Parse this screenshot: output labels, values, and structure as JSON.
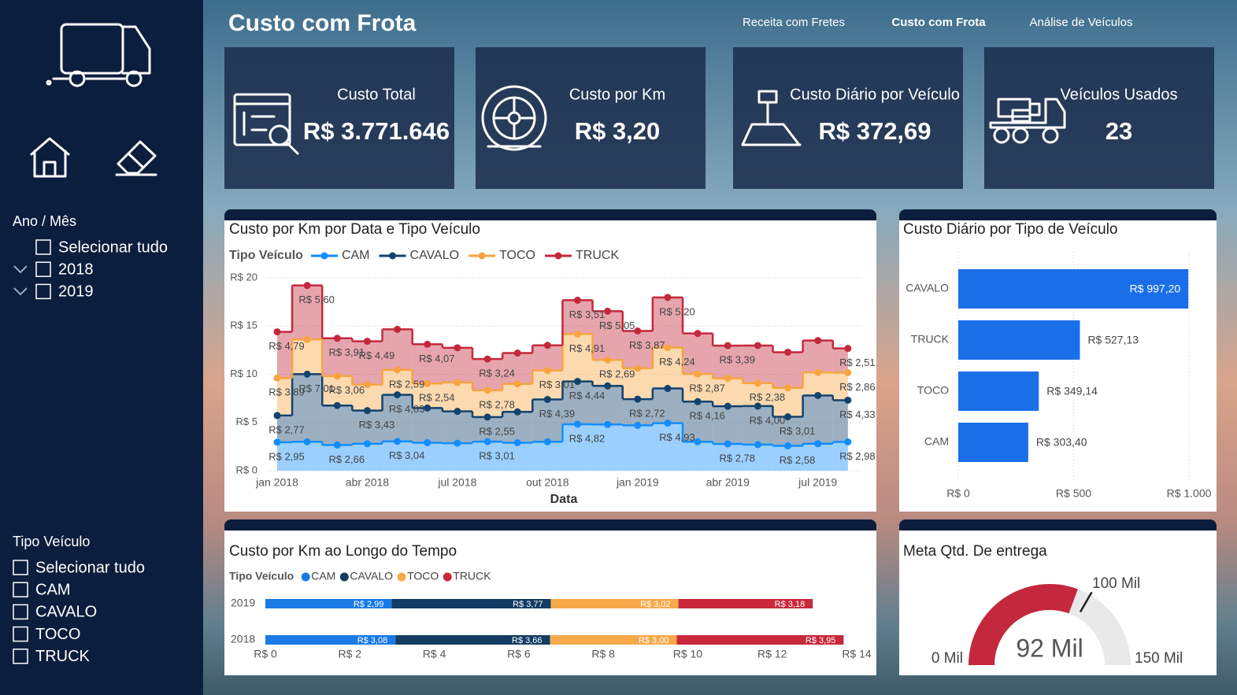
{
  "header": {
    "title": "Custo com Frota",
    "nav": [
      "Receita com Fretes",
      "Custo com Frota",
      "Análise de Veículos"
    ],
    "active_nav": 1
  },
  "filters": [
    {
      "title": "Ano / Mês",
      "options": [
        "Selecionar tudo",
        "2018",
        "2019"
      ]
    },
    {
      "title": "Tipo Veículo",
      "options": [
        "Selecionar tudo",
        "CAM",
        "CAVALO",
        "TOCO",
        "TRUCK"
      ]
    }
  ],
  "kpis": [
    {
      "label": "Custo Total",
      "value": "R$ 3.771.646"
    },
    {
      "label": "Custo por Km",
      "value": "R$ 3,20"
    },
    {
      "label": "Custo Diário por Veículo",
      "value": "R$ 372,69"
    },
    {
      "label": "Veículos Usados",
      "value": "23"
    }
  ],
  "chart_data": [
    {
      "type": "area",
      "stacked": true,
      "step": true,
      "title": "Custo por Km por Data e Tipo Veículo",
      "legend_title": "Tipo Veículo",
      "xlabel": "Data",
      "categories": [
        "jan 2018",
        null,
        null,
        "abr 2018",
        null,
        null,
        "jul 2018",
        null,
        null,
        "out 2018",
        null,
        null,
        "jan 2019",
        null,
        null,
        "abr 2019",
        null,
        null,
        "jul 2019",
        null
      ],
      "ylim": [
        0,
        20
      ],
      "yticks": [
        {
          "value": 0,
          "label": "R$ 0"
        },
        {
          "value": 5,
          "label": "R$ 5"
        },
        {
          "value": 10,
          "label": "R$ 10"
        },
        {
          "value": 15,
          "label": "R$ 15"
        },
        {
          "value": 20,
          "label": "R$ 20"
        }
      ],
      "grid": true,
      "series": [
        {
          "name": "CAM",
          "color": "#118dff",
          "values": [
            2.95,
            3.0,
            2.66,
            2.8,
            3.04,
            2.9,
            2.85,
            3.01,
            2.9,
            3.0,
            4.82,
            4.8,
            4.7,
            4.93,
            3.0,
            2.78,
            2.7,
            2.58,
            2.8,
            2.98
          ],
          "value_labels": [
            "R$ 2,95",
            null,
            "R$ 2,66",
            null,
            "R$ 3,04",
            null,
            null,
            "R$ 3,01",
            null,
            null,
            "R$ 4,82",
            null,
            null,
            "R$ 4,93",
            null,
            "R$ 2,78",
            null,
            "R$ 2,58",
            null,
            "R$ 2,98"
          ]
        },
        {
          "name": "CAVALO",
          "color": "#12436d",
          "values": [
            2.77,
            7.01,
            4.1,
            3.43,
            4.83,
            3.6,
            3.3,
            2.55,
            3.2,
            4.39,
            4.44,
            4.0,
            2.72,
            3.6,
            4.16,
            3.9,
            4.0,
            3.01,
            5.0,
            4.33
          ],
          "value_labels": [
            "R$ 2,77",
            "R$ 7,01",
            null,
            "R$ 3,43",
            "R$ 4,83",
            null,
            null,
            "R$ 2,55",
            null,
            "R$ 4,39",
            "R$ 4,44",
            null,
            "R$ 2,72",
            null,
            "R$ 4,16",
            null,
            "R$ 4,00",
            "R$ 3,01",
            null,
            "R$ 4,33"
          ]
        },
        {
          "name": "TOCO",
          "color": "#f7a440",
          "values": [
            3.89,
            3.6,
            3.06,
            2.7,
            2.59,
            2.54,
            3.0,
            2.78,
            2.9,
            3.01,
            4.91,
            2.69,
            3.2,
            4.24,
            2.87,
            2.9,
            2.38,
            3.0,
            2.4,
            2.86
          ],
          "value_labels": [
            "R$ 3,89",
            null,
            "R$ 3,06",
            null,
            "R$ 2,59",
            "R$ 2,54",
            null,
            "R$ 2,78",
            null,
            "R$ 3,01",
            "R$ 4,91",
            "R$ 2,69",
            null,
            "R$ 4,24",
            "R$ 2,87",
            null,
            "R$ 2,38",
            null,
            null,
            "R$ 2,86"
          ]
        },
        {
          "name": "TRUCK",
          "color": "#c4283c",
          "values": [
            4.79,
            5.6,
            3.91,
            4.49,
            4.2,
            4.07,
            3.6,
            3.24,
            3.2,
            2.6,
            3.51,
            5.05,
            3.87,
            5.2,
            4.2,
            3.39,
            3.9,
            3.7,
            3.3,
            2.51
          ],
          "value_labels": [
            "R$ 4,79",
            "R$ 5,60",
            "R$ 3,91",
            "R$ 4,49",
            null,
            "R$ 4,07",
            null,
            "R$ 3,24",
            null,
            null,
            "R$ 3,51",
            "R$ 5,05",
            "R$ 3,87",
            "R$ 5,20",
            null,
            "R$ 3,39",
            null,
            null,
            null,
            "R$ 2,51"
          ]
        }
      ]
    },
    {
      "type": "bar",
      "orientation": "horizontal",
      "title": "Custo Diário por Tipo de Veículo",
      "categories": [
        "CAVALO",
        "TRUCK",
        "TOCO",
        "CAM"
      ],
      "values": [
        997.2,
        527.13,
        349.14,
        303.4
      ],
      "value_labels": [
        "R$ 997,20",
        "R$ 527,13",
        "R$ 349,14",
        "R$ 303,40"
      ],
      "color": "#1a6fe8",
      "xlim": [
        0,
        1000
      ],
      "xticks": [
        {
          "value": 0,
          "label": "R$ 0"
        },
        {
          "value": 500,
          "label": "R$ 500"
        },
        {
          "value": 1000,
          "label": "R$ 1.000"
        }
      ],
      "grid": true
    },
    {
      "type": "stacked_bar",
      "orientation": "horizontal",
      "title": "Custo por Km ao Longo do Tempo",
      "legend_title": "Tipo Veículo",
      "categories": [
        "2019",
        "2018"
      ],
      "series": [
        {
          "name": "CAM",
          "color": "#1a7ae6",
          "values": [
            2.99,
            3.08
          ],
          "value_labels": [
            "R$ 2,99",
            "R$ 3,08"
          ]
        },
        {
          "name": "CAVALO",
          "color": "#123c64",
          "values": [
            3.77,
            3.66
          ],
          "value_labels": [
            "R$ 3,77",
            "R$ 3,66"
          ]
        },
        {
          "name": "TOCO",
          "color": "#f7a94a",
          "values": [
            3.02,
            3.0
          ],
          "value_labels": [
            "R$ 3,02",
            "R$ 3,00"
          ]
        },
        {
          "name": "TRUCK",
          "color": "#c8283a",
          "values": [
            3.18,
            3.95
          ],
          "value_labels": [
            "R$ 3,18",
            "R$ 3,95"
          ]
        }
      ],
      "xlim": [
        0,
        14
      ],
      "xticks": [
        {
          "value": 0,
          "label": "R$ 0"
        },
        {
          "value": 2,
          "label": "R$ 2"
        },
        {
          "value": 4,
          "label": "R$ 4"
        },
        {
          "value": 6,
          "label": "R$ 6"
        },
        {
          "value": 8,
          "label": "R$ 8"
        },
        {
          "value": 10,
          "label": "R$ 10"
        },
        {
          "value": 12,
          "label": "R$ 12"
        },
        {
          "value": 14,
          "label": "R$ 14"
        }
      ]
    },
    {
      "type": "gauge",
      "title": "Meta Qtd. De entrega",
      "value": 92,
      "value_label": "92 Mil",
      "min": {
        "value": 0,
        "label": "0 Mil"
      },
      "max": {
        "value": 150,
        "label": "150 Mil"
      },
      "target": {
        "value": 100,
        "label": "100 Mil"
      },
      "color": "#c4283c"
    }
  ]
}
